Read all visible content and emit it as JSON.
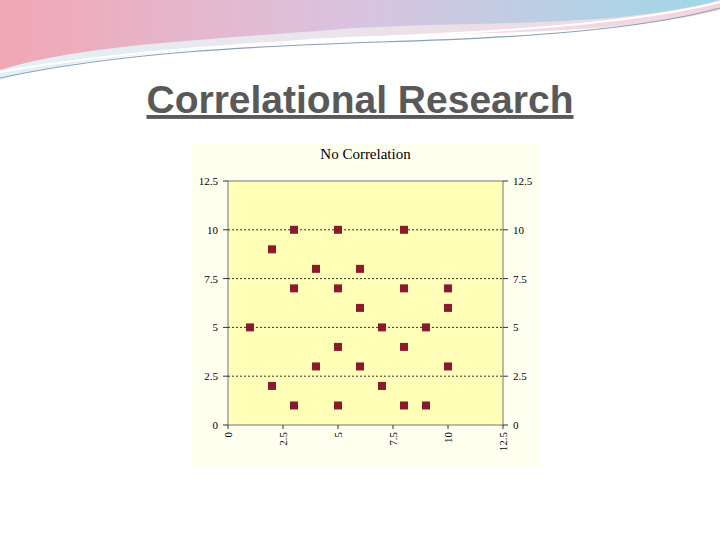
{
  "slide": {
    "title": "Correlational Research"
  },
  "chart_data": {
    "type": "scatter",
    "title": "No Correlation",
    "x": [
      3,
      5,
      8,
      2,
      4,
      6,
      3,
      5,
      8,
      10,
      6,
      10,
      1,
      7,
      9,
      5,
      8,
      4,
      6,
      10,
      2,
      7,
      3,
      5,
      8,
      9
    ],
    "values": [
      10,
      10,
      10,
      9,
      8,
      8,
      7,
      7,
      7,
      7,
      6,
      6,
      5,
      5,
      5,
      4,
      4,
      3,
      3,
      3,
      2,
      2,
      1,
      1,
      1,
      1
    ],
    "color": "#8b1a2e",
    "marker": "square",
    "xlim": [
      0,
      12.5
    ],
    "xticks": [
      0,
      2.5,
      5,
      7.5,
      10,
      12.5
    ],
    "ylim": [
      0,
      12.5
    ],
    "yticks": [
      0,
      2.5,
      5,
      7.5,
      10,
      12.5
    ],
    "grid": true
  }
}
